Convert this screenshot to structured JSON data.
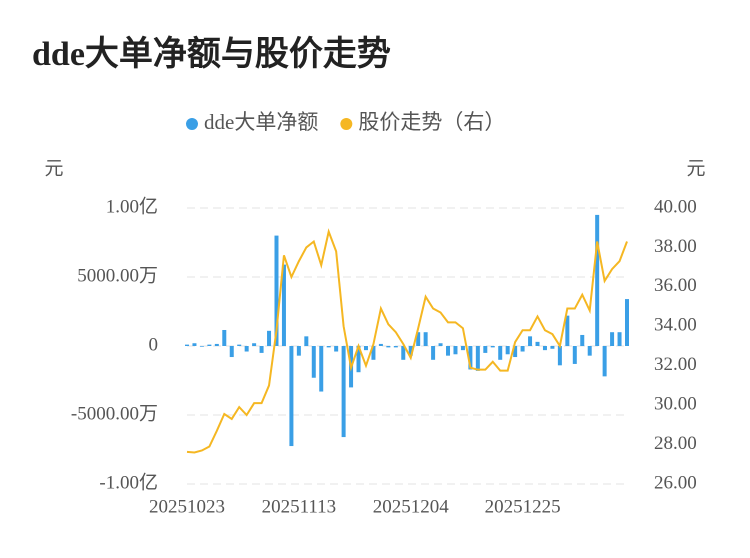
{
  "chart_data": {
    "type": "bar+line",
    "title": "dde大单净额与股价走势",
    "ylabel": "元",
    "y2label": "元",
    "categories": [
      "20251023",
      null,
      null,
      null,
      null,
      null,
      null,
      null,
      null,
      null,
      null,
      null,
      null,
      null,
      null,
      "20251113",
      null,
      null,
      null,
      null,
      null,
      null,
      null,
      null,
      null,
      null,
      null,
      null,
      null,
      null,
      "20251204",
      null,
      null,
      null,
      null,
      null,
      null,
      null,
      null,
      null,
      null,
      null,
      null,
      null,
      null,
      "20251225",
      null,
      null,
      null,
      null,
      null,
      null,
      null,
      null,
      null,
      null,
      null,
      null,
      null,
      null
    ],
    "ylim": [
      -10000,
      10000
    ],
    "yticks": [
      {
        "value": -10000,
        "label": "-1.00亿"
      },
      {
        "value": -5000,
        "label": "-5000.00万"
      },
      0,
      {
        "value": 5000,
        "label": "5000.00万"
      },
      {
        "value": 10000,
        "label": "1.00亿"
      }
    ],
    "y2lim": [
      26,
      40
    ],
    "y2ticks": [
      {
        "value": 26,
        "label": "26.00"
      },
      {
        "value": 28,
        "label": "28.00"
      },
      {
        "value": 30,
        "label": "30.00"
      },
      {
        "value": 32,
        "label": "32.00"
      },
      {
        "value": 34,
        "label": "34.00"
      },
      {
        "value": 36,
        "label": "36.00"
      },
      {
        "value": 38,
        "label": "38.00"
      },
      {
        "value": 40,
        "label": "40.00"
      }
    ],
    "grid": true,
    "legend": "top",
    "series": [
      {
        "name": "dde大单净额",
        "type": "bar",
        "color": "#3a9fe6",
        "values": [
          100,
          200,
          -50,
          100,
          150,
          1160,
          -800,
          100,
          -400,
          200,
          -500,
          1100,
          8000,
          5900,
          -7250,
          -700,
          700,
          -2300,
          -3300,
          -100,
          -400,
          -6600,
          -3000,
          -1900,
          -300,
          -1000,
          150,
          -100,
          -100,
          -1000,
          -700,
          1000,
          1000,
          -1000,
          200,
          -700,
          -600,
          -300,
          -1700,
          -1800,
          -500,
          -100,
          -1000,
          -600,
          -800,
          -400,
          700,
          300,
          -300,
          -200,
          -1400,
          2200,
          -1300,
          800,
          -700,
          9500,
          -2200,
          1000,
          1000,
          3400
        ]
      },
      {
        "name": "股价走势（右）",
        "type": "line",
        "axis": "y2",
        "color": "#f5b722",
        "values": [
          27.63,
          27.6,
          27.7,
          27.9,
          28.7,
          29.55,
          29.3,
          29.9,
          29.5,
          30.1,
          30.1,
          31.0,
          33.8,
          37.6,
          36.5,
          37.3,
          38.0,
          38.3,
          37.1,
          38.8,
          37.8,
          34.0,
          31.9,
          33.0,
          32.0,
          33.1,
          34.9,
          34.1,
          33.7,
          33.1,
          32.4,
          33.9,
          35.5,
          34.9,
          34.7,
          34.2,
          34.2,
          33.9,
          31.9,
          31.8,
          31.8,
          32.2,
          31.75,
          31.75,
          33.2,
          33.8,
          33.8,
          34.5,
          33.8,
          33.6,
          33.0,
          34.9,
          34.9,
          35.6,
          34.8,
          38.3,
          36.3,
          36.9,
          37.3,
          38.3
        ]
      }
    ]
  }
}
